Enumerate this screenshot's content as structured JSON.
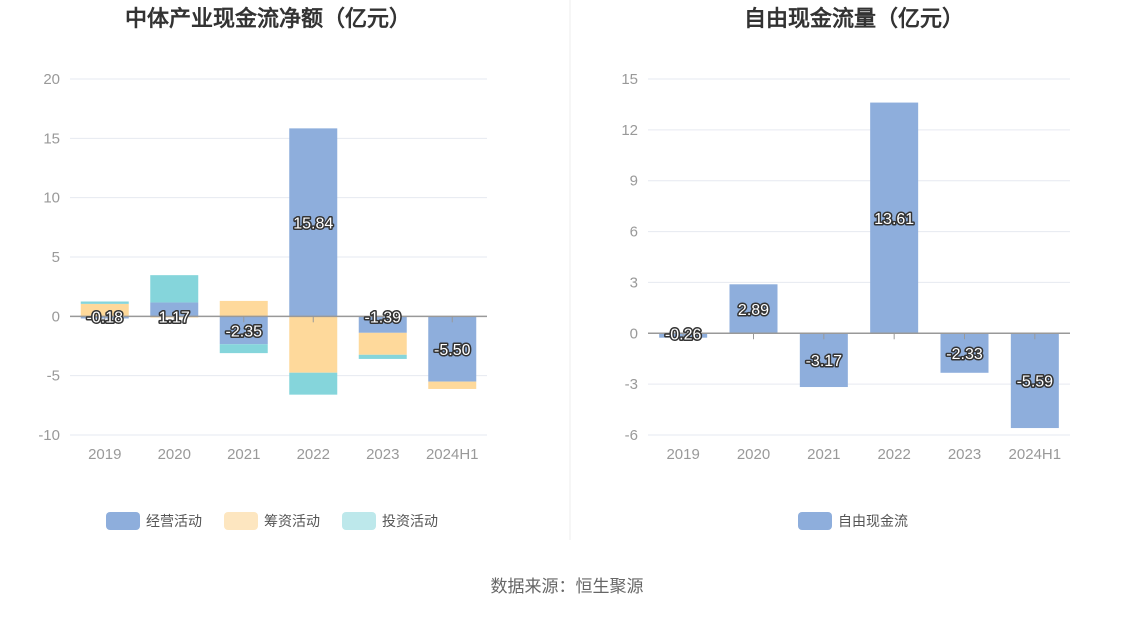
{
  "source": "数据来源：恒生聚源",
  "chart_data": [
    {
      "type": "bar",
      "stacked": true,
      "title": "中体产业现金流净额（亿元）",
      "categories": [
        "2019",
        "2020",
        "2021",
        "2022",
        "2023",
        "2024H1"
      ],
      "ylim": [
        -10,
        20
      ],
      "yticks": [
        20,
        15,
        10,
        5,
        0,
        -5,
        -10
      ],
      "grid": true,
      "legend_position": "bottom",
      "series": [
        {
          "name": "经营活动",
          "color": "#8eaedc",
          "values": [
            -0.18,
            1.17,
            -2.35,
            15.84,
            -1.39,
            -5.5
          ]
        },
        {
          "name": "筹资活动",
          "color": "#fed99b",
          "values": [
            1.05,
            -0.1,
            1.3,
            -4.75,
            -1.85,
            -0.62
          ]
        },
        {
          "name": "投资活动",
          "color": "#85d5db",
          "values": [
            0.2,
            2.3,
            -0.75,
            -1.85,
            -0.35,
            0.0
          ]
        }
      ],
      "data_labels": [
        "-0.18",
        "1.17",
        "-2.35",
        "15.84",
        "-1.39",
        "-5.50"
      ]
    },
    {
      "type": "bar",
      "title": "自由现金流量（亿元）",
      "categories": [
        "2019",
        "2020",
        "2021",
        "2022",
        "2023",
        "2024H1"
      ],
      "ylim": [
        -6,
        15
      ],
      "yticks": [
        15,
        12,
        9,
        6,
        3,
        0,
        -3,
        -6
      ],
      "grid": true,
      "legend_position": "bottom",
      "series": [
        {
          "name": "自由现金流",
          "color": "#8eaedc",
          "values": [
            -0.26,
            2.89,
            -3.17,
            13.61,
            -2.33,
            -5.59
          ]
        }
      ],
      "data_labels": [
        "-0.26",
        "2.89",
        "-3.17",
        "13.61",
        "-2.33",
        "-5.59"
      ]
    }
  ]
}
